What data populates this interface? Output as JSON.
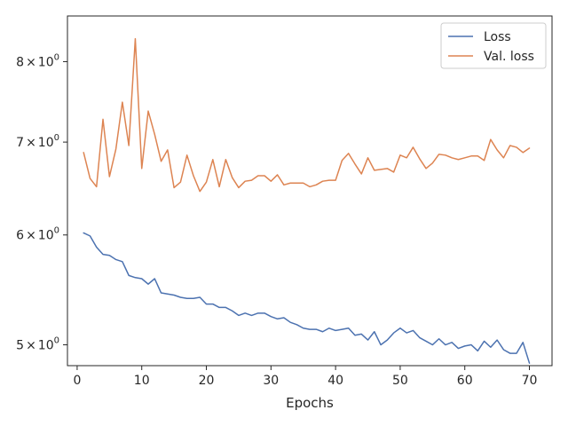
{
  "chart_data": {
    "type": "line",
    "title": "",
    "xlabel": "Epochs",
    "ylabel": "",
    "yscale": "log",
    "xlim": [
      -1.5,
      73.5
    ],
    "ylim": [
      4.83,
      8.63
    ],
    "grid": false,
    "legend_position": "top-right",
    "x_ticks": [
      0,
      10,
      20,
      30,
      40,
      50,
      60,
      70
    ],
    "x_tick_labels": [
      "0",
      "10",
      "20",
      "30",
      "40",
      "50",
      "60",
      "70"
    ],
    "y_ticks": [
      5,
      6,
      7,
      8
    ],
    "y_tick_labels": [
      {
        "base": "5",
        "mult": "×",
        "pow": "10",
        "exp": "0"
      },
      {
        "base": "6",
        "mult": "×",
        "pow": "10",
        "exp": "0"
      },
      {
        "base": "7",
        "mult": "×",
        "pow": "10",
        "exp": "0"
      },
      {
        "base": "8",
        "mult": "×",
        "pow": "10",
        "exp": "0"
      }
    ],
    "x": [
      1,
      2,
      3,
      4,
      5,
      6,
      7,
      8,
      9,
      10,
      11,
      12,
      13,
      14,
      15,
      16,
      17,
      18,
      19,
      20,
      21,
      22,
      23,
      24,
      25,
      26,
      27,
      28,
      29,
      30,
      31,
      32,
      33,
      34,
      35,
      36,
      37,
      38,
      39,
      40,
      41,
      42,
      43,
      44,
      45,
      46,
      47,
      48,
      49,
      50,
      51,
      52,
      53,
      54,
      55,
      56,
      57,
      58,
      59,
      60,
      61,
      62,
      63,
      64,
      65,
      66,
      67,
      68,
      69,
      70
    ],
    "series": [
      {
        "name": "Loss",
        "color": "#4c72b0",
        "values": [
          6.02,
          5.99,
          5.88,
          5.81,
          5.8,
          5.76,
          5.74,
          5.61,
          5.59,
          5.58,
          5.53,
          5.58,
          5.45,
          5.44,
          5.43,
          5.41,
          5.4,
          5.4,
          5.41,
          5.35,
          5.35,
          5.32,
          5.32,
          5.29,
          5.25,
          5.27,
          5.25,
          5.27,
          5.27,
          5.24,
          5.22,
          5.23,
          5.19,
          5.17,
          5.14,
          5.13,
          5.13,
          5.11,
          5.14,
          5.12,
          5.13,
          5.14,
          5.08,
          5.09,
          5.04,
          5.11,
          5.0,
          5.04,
          5.1,
          5.14,
          5.1,
          5.12,
          5.06,
          5.03,
          5.0,
          5.05,
          5.0,
          5.02,
          4.97,
          4.99,
          5.0,
          4.95,
          5.03,
          4.98,
          5.04,
          4.96,
          4.93,
          4.93,
          5.02,
          4.85
        ]
      },
      {
        "name": "Val. loss",
        "color": "#dd8452",
        "values": [
          6.88,
          6.59,
          6.5,
          7.27,
          6.61,
          6.92,
          7.48,
          6.96,
          8.31,
          6.7,
          7.37,
          7.09,
          6.78,
          6.91,
          6.49,
          6.55,
          6.85,
          6.62,
          6.45,
          6.55,
          6.8,
          6.5,
          6.8,
          6.6,
          6.49,
          6.56,
          6.57,
          6.62,
          6.62,
          6.56,
          6.63,
          6.52,
          6.54,
          6.54,
          6.54,
          6.5,
          6.52,
          6.56,
          6.57,
          6.57,
          6.79,
          6.87,
          6.75,
          6.64,
          6.82,
          6.68,
          6.69,
          6.7,
          6.66,
          6.85,
          6.82,
          6.94,
          6.81,
          6.7,
          6.76,
          6.86,
          6.85,
          6.82,
          6.8,
          6.82,
          6.84,
          6.84,
          6.79,
          7.03,
          6.91,
          6.82,
          6.96,
          6.94,
          6.88,
          6.93
        ]
      }
    ]
  }
}
